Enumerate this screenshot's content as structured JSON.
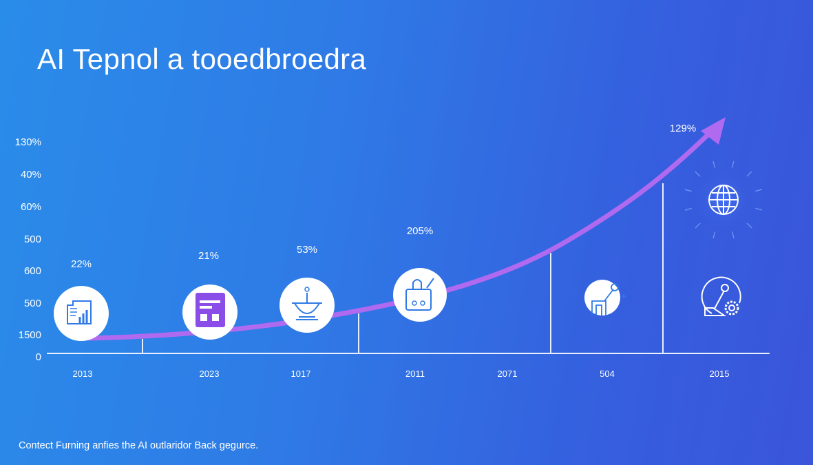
{
  "title": "AI Tepnol a tooedbroedra",
  "footer": "Contect Furning anfies the AI outlaridor Back gegurce.",
  "colors": {
    "background_start": "#2a8ce9",
    "background_end": "#3a55da",
    "curve": "#b06af0",
    "axis": "#e8f0ff",
    "icon_purple": "#8a4de8",
    "icon_blue": "#2f7ae6"
  },
  "chart_data": {
    "type": "line",
    "title": "AI Tepnol a tooedbroedra",
    "y_tick_labels": [
      "130%",
      "40%",
      "60%",
      "500",
      "600",
      "500",
      "1500",
      "0"
    ],
    "x_tick_labels": [
      "2013",
      "2023",
      "1017",
      "2011",
      "2071",
      "504",
      "2015"
    ],
    "data_labels": [
      {
        "label": "22%",
        "icon": "chart-document-icon"
      },
      {
        "label": "21%",
        "icon": "notepad-icon"
      },
      {
        "label": "53%",
        "icon": "lamp-icon"
      },
      {
        "label": "205%",
        "icon": "robot-icon"
      },
      {
        "label": "129%",
        "icon": "globe-icon"
      }
    ],
    "extra_icons": [
      "robot-arm-icon",
      "disk-gear-icon"
    ],
    "trend": "exponential growth arrow",
    "grid": false
  }
}
